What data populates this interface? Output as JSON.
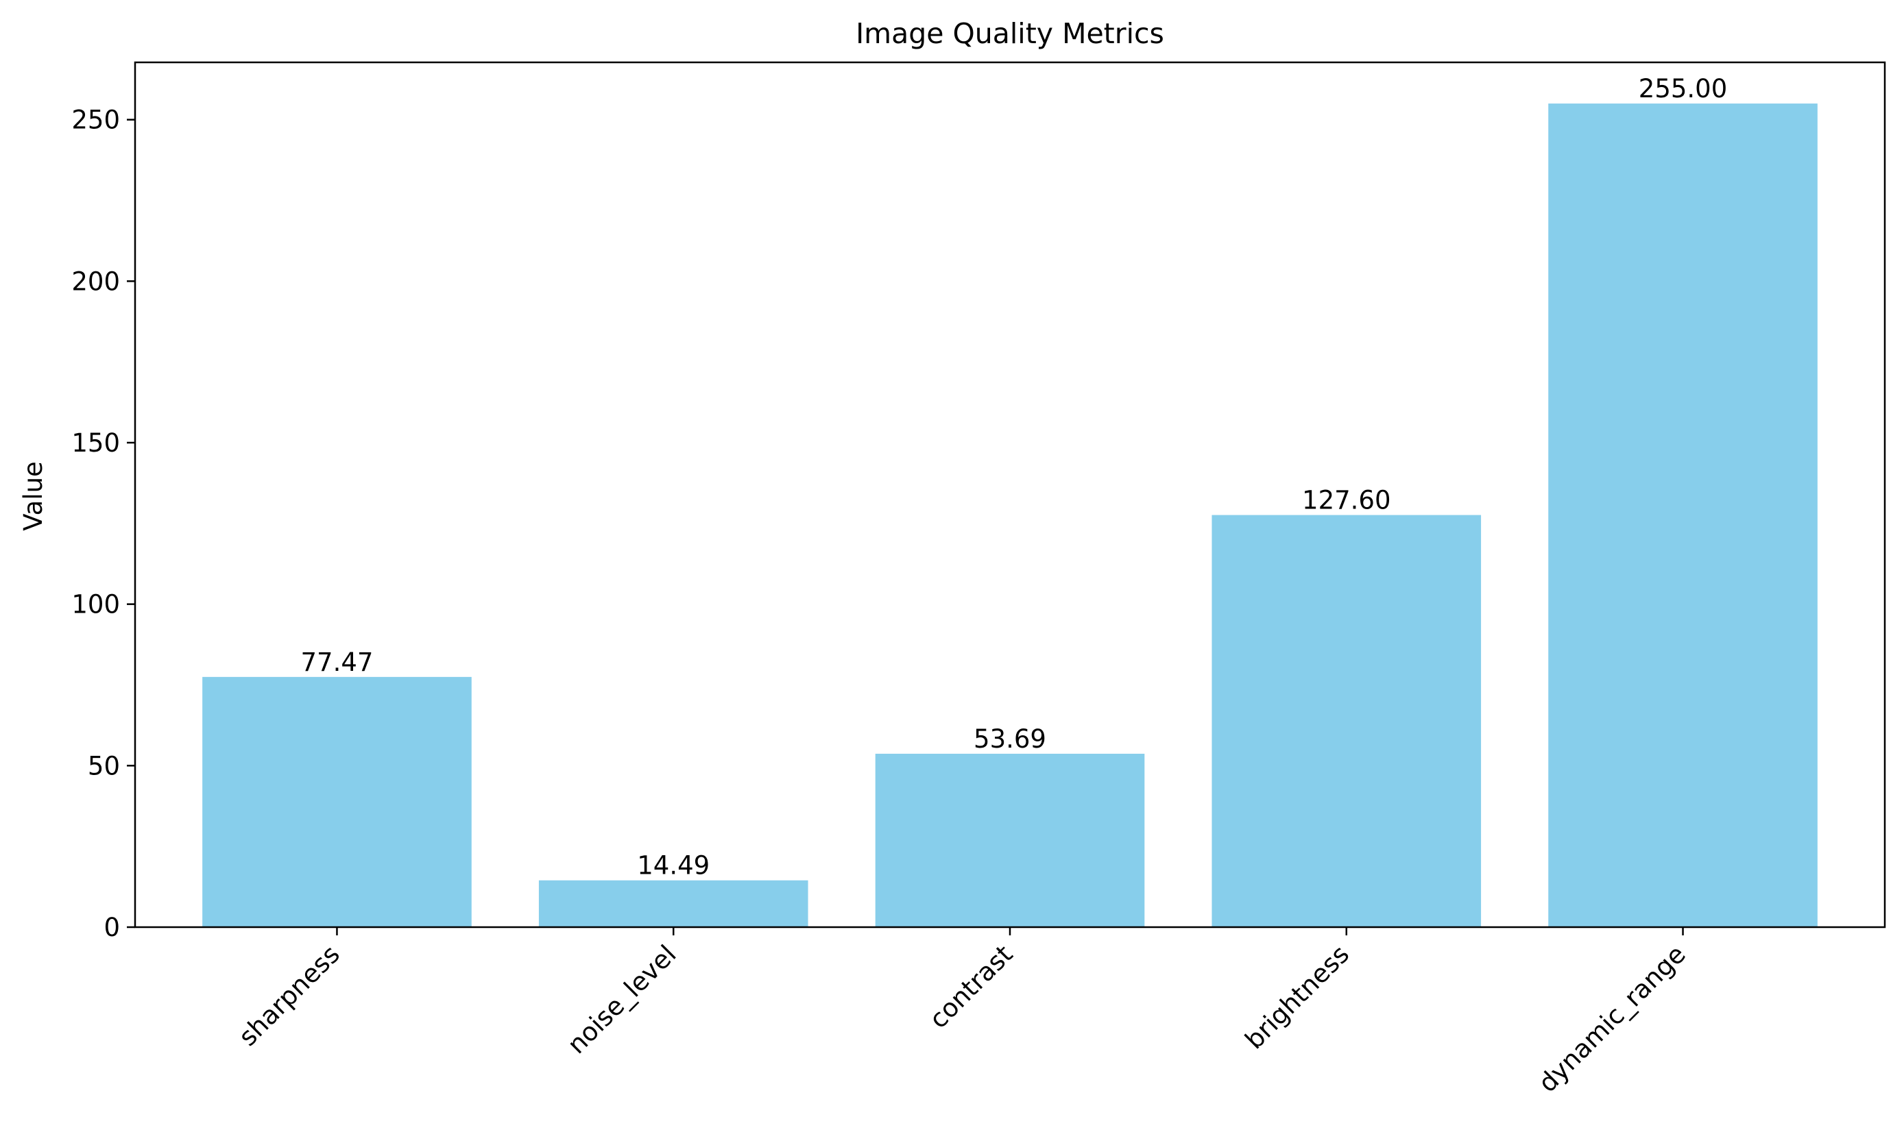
{
  "chart_data": {
    "type": "bar",
    "title": "Image Quality Metrics",
    "xlabel": "",
    "ylabel": "Value",
    "categories": [
      "sharpness",
      "noise_level",
      "contrast",
      "brightness",
      "dynamic_range"
    ],
    "values": [
      77.47,
      14.49,
      53.69,
      127.6,
      255.0
    ],
    "value_labels": [
      "77.47",
      "14.49",
      "53.69",
      "127.60",
      "255.00"
    ],
    "yticks": [
      0,
      50,
      100,
      150,
      200,
      250
    ],
    "ylim": [
      0,
      267.75
    ],
    "grid": false,
    "legend": "none",
    "x_tick_rotation_deg": 45,
    "colors": {
      "bar": "#87CEEB",
      "axis": "#000000",
      "text": "#000000",
      "background": "#ffffff"
    }
  }
}
